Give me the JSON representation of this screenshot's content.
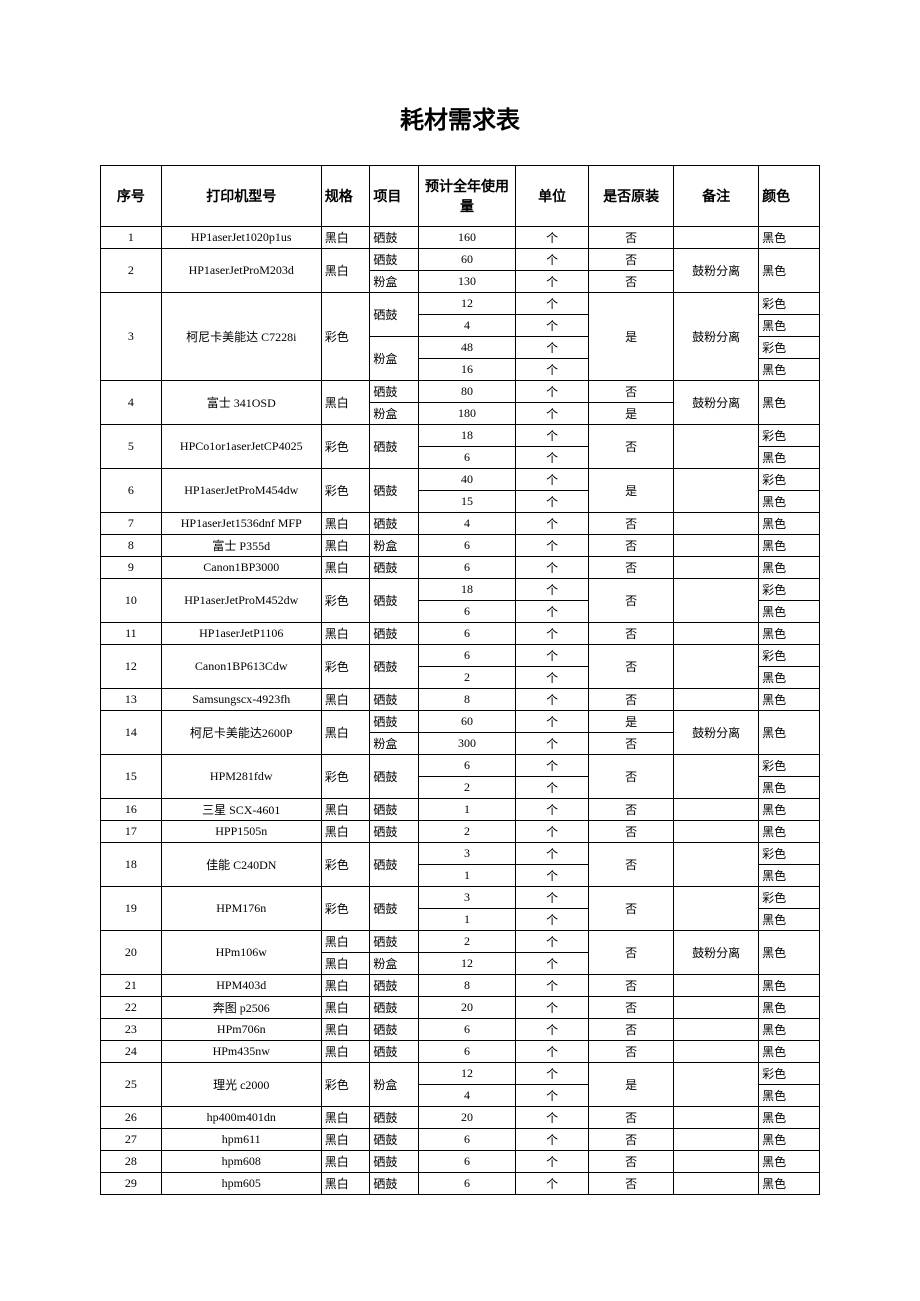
{
  "title": "耗材需求表",
  "headers": {
    "idx": "序号",
    "model": "打印机型号",
    "spec": "规格",
    "item": "项目",
    "qty": "预计全年使用量",
    "unit": "单位",
    "orig": "是否原装",
    "remark": "备注",
    "color": "颜色"
  },
  "rows": [
    {
      "idx": "1",
      "model": "HP1aserJet1020p1us",
      "spec": "黑白",
      "item": "硒鼓",
      "qty": "160",
      "unit": "个",
      "orig": "否",
      "remark": "",
      "color": "黑色",
      "idx_rs": 1,
      "model_rs": 1,
      "spec_rs": 1,
      "item_rs": 1,
      "orig_rs": 1,
      "remark_rs": 1,
      "color_rs": 1
    },
    {
      "idx": "2",
      "model": "HP1aserJetProM203d",
      "spec": "黑白",
      "item": "硒鼓",
      "qty": "60",
      "unit": "个",
      "orig": "否",
      "remark": "鼓粉分离",
      "color": "黑色",
      "idx_rs": 2,
      "model_rs": 2,
      "spec_rs": 2,
      "item_rs": 1,
      "orig_rs": 1,
      "remark_rs": 2,
      "color_rs": 2
    },
    {
      "item": "粉盒",
      "qty": "130",
      "unit": "个",
      "orig": "否",
      "item_rs": 1,
      "orig_rs": 1
    },
    {
      "idx": "3",
      "model": "柯尼卡美能达 C7228i",
      "spec": "彩色",
      "item": "硒鼓",
      "qty": "12",
      "unit": "个",
      "orig": "是",
      "remark": "鼓粉分离",
      "color": "彩色",
      "idx_rs": 4,
      "model_rs": 4,
      "spec_rs": 4,
      "item_rs": 2,
      "orig_rs": 4,
      "remark_rs": 4,
      "color_rs": 1
    },
    {
      "qty": "4",
      "unit": "个",
      "color": "黑色",
      "color_rs": 1
    },
    {
      "item": "粉盒",
      "qty": "48",
      "unit": "个",
      "color": "彩色",
      "item_rs": 2,
      "color_rs": 1
    },
    {
      "qty": "16",
      "unit": "个",
      "color": "黑色",
      "color_rs": 1
    },
    {
      "idx": "4",
      "model": "富士 341OSD",
      "spec": "黑白",
      "item": "硒鼓",
      "qty": "80",
      "unit": "个",
      "orig": "否",
      "remark": "鼓粉分离",
      "color": "黑色",
      "idx_rs": 2,
      "model_rs": 2,
      "spec_rs": 2,
      "item_rs": 1,
      "orig_rs": 1,
      "remark_rs": 2,
      "color_rs": 2
    },
    {
      "item": "粉盒",
      "qty": "180",
      "unit": "个",
      "orig": "是",
      "item_rs": 1,
      "orig_rs": 1
    },
    {
      "idx": "5",
      "model": "HPCo1or1aserJetCP4025",
      "spec": "彩色",
      "item": "硒鼓",
      "qty": "18",
      "unit": "个",
      "orig": "否",
      "remark": "",
      "color": "彩色",
      "idx_rs": 2,
      "model_rs": 2,
      "spec_rs": 2,
      "item_rs": 2,
      "orig_rs": 2,
      "remark_rs": 2,
      "color_rs": 1
    },
    {
      "qty": "6",
      "unit": "个",
      "color": "黑色",
      "color_rs": 1
    },
    {
      "idx": "6",
      "model": "HP1aserJetProM454dw",
      "spec": "彩色",
      "item": "硒鼓",
      "qty": "40",
      "unit": "个",
      "orig": "是",
      "remark": "",
      "color": "彩色",
      "idx_rs": 2,
      "model_rs": 2,
      "spec_rs": 2,
      "item_rs": 2,
      "orig_rs": 2,
      "remark_rs": 2,
      "color_rs": 1
    },
    {
      "qty": "15",
      "unit": "个",
      "color": "黑色",
      "color_rs": 1
    },
    {
      "idx": "7",
      "model": "HP1aserJet1536dnf MFP",
      "spec": "黑白",
      "item": "硒鼓",
      "qty": "4",
      "unit": "个",
      "orig": "否",
      "remark": "",
      "color": "黑色",
      "idx_rs": 1,
      "model_rs": 1,
      "spec_rs": 1,
      "item_rs": 1,
      "orig_rs": 1,
      "remark_rs": 1,
      "color_rs": 1
    },
    {
      "idx": "8",
      "model": "富士 P355d",
      "spec": "黑白",
      "item": "粉盒",
      "qty": "6",
      "unit": "个",
      "orig": "否",
      "remark": "",
      "color": "黑色",
      "idx_rs": 1,
      "model_rs": 1,
      "spec_rs": 1,
      "item_rs": 1,
      "orig_rs": 1,
      "remark_rs": 1,
      "color_rs": 1
    },
    {
      "idx": "9",
      "model": "Canon1BP3000",
      "spec": "黑白",
      "item": "硒鼓",
      "qty": "6",
      "unit": "个",
      "orig": "否",
      "remark": "",
      "color": "黑色",
      "idx_rs": 1,
      "model_rs": 1,
      "spec_rs": 1,
      "item_rs": 1,
      "orig_rs": 1,
      "remark_rs": 1,
      "color_rs": 1
    },
    {
      "idx": "10",
      "model": "HP1aserJetProM452dw",
      "spec": "彩色",
      "item": "硒鼓",
      "qty": "18",
      "unit": "个",
      "orig": "否",
      "remark": "",
      "color": "彩色",
      "idx_rs": 2,
      "model_rs": 2,
      "spec_rs": 2,
      "item_rs": 2,
      "orig_rs": 2,
      "remark_rs": 2,
      "color_rs": 1
    },
    {
      "qty": "6",
      "unit": "个",
      "color": "黑色",
      "color_rs": 1
    },
    {
      "idx": "11",
      "model": "HP1aserJetP1106",
      "spec": "黑白",
      "item": "硒鼓",
      "qty": "6",
      "unit": "个",
      "orig": "否",
      "remark": "",
      "color": "黑色",
      "idx_rs": 1,
      "model_rs": 1,
      "spec_rs": 1,
      "item_rs": 1,
      "orig_rs": 1,
      "remark_rs": 1,
      "color_rs": 1
    },
    {
      "idx": "12",
      "model": "Canon1BP613Cdw",
      "spec": "彩色",
      "item": "硒鼓",
      "qty": "6",
      "unit": "个",
      "orig": "否",
      "remark": "",
      "color": "彩色",
      "idx_rs": 2,
      "model_rs": 2,
      "spec_rs": 2,
      "item_rs": 2,
      "orig_rs": 2,
      "remark_rs": 2,
      "color_rs": 1
    },
    {
      "qty": "2",
      "unit": "个",
      "color": "黑色",
      "color_rs": 1
    },
    {
      "idx": "13",
      "model": "Samsungscx-4923fh",
      "spec": "黑白",
      "item": "硒鼓",
      "qty": "8",
      "unit": "个",
      "orig": "否",
      "remark": "",
      "color": "黑色",
      "idx_rs": 1,
      "model_rs": 1,
      "spec_rs": 1,
      "item_rs": 1,
      "orig_rs": 1,
      "remark_rs": 1,
      "color_rs": 1
    },
    {
      "idx": "14",
      "model": "柯尼卡美能达2600P",
      "spec": "黑白",
      "item": "硒鼓",
      "qty": "60",
      "unit": "个",
      "orig": "是",
      "remark": "鼓粉分离",
      "color": "黑色",
      "idx_rs": 2,
      "model_rs": 2,
      "spec_rs": 2,
      "item_rs": 1,
      "orig_rs": 1,
      "remark_rs": 2,
      "color_rs": 2
    },
    {
      "item": "粉盒",
      "qty": "300",
      "unit": "个",
      "orig": "否",
      "item_rs": 1,
      "orig_rs": 1
    },
    {
      "idx": "15",
      "model": "HPM281fdw",
      "spec": "彩色",
      "item": "硒鼓",
      "qty": "6",
      "unit": "个",
      "orig": "否",
      "remark": "",
      "color": "彩色",
      "idx_rs": 2,
      "model_rs": 2,
      "spec_rs": 2,
      "item_rs": 2,
      "orig_rs": 2,
      "remark_rs": 2,
      "color_rs": 1
    },
    {
      "qty": "2",
      "unit": "个",
      "color": "黑色",
      "color_rs": 1
    },
    {
      "idx": "16",
      "model": "三星 SCX-4601",
      "spec": "黑白",
      "item": "硒鼓",
      "qty": "1",
      "unit": "个",
      "orig": "否",
      "remark": "",
      "color": "黑色",
      "idx_rs": 1,
      "model_rs": 1,
      "spec_rs": 1,
      "item_rs": 1,
      "orig_rs": 1,
      "remark_rs": 1,
      "color_rs": 1
    },
    {
      "idx": "17",
      "model": "HPP1505n",
      "spec": "黑白",
      "item": "硒鼓",
      "qty": "2",
      "unit": "个",
      "orig": "否",
      "remark": "",
      "color": "黑色",
      "idx_rs": 1,
      "model_rs": 1,
      "spec_rs": 1,
      "item_rs": 1,
      "orig_rs": 1,
      "remark_rs": 1,
      "color_rs": 1
    },
    {
      "idx": "18",
      "model": "佳能 C240DN",
      "spec": "彩色",
      "item": "硒鼓",
      "qty": "3",
      "unit": "个",
      "orig": "否",
      "remark": "",
      "color": "彩色",
      "idx_rs": 2,
      "model_rs": 2,
      "spec_rs": 2,
      "item_rs": 2,
      "orig_rs": 2,
      "remark_rs": 2,
      "color_rs": 1
    },
    {
      "qty": "1",
      "unit": "个",
      "color": "黑色",
      "color_rs": 1
    },
    {
      "idx": "19",
      "model": "HPM176n",
      "spec": "彩色",
      "item": "硒鼓",
      "qty": "3",
      "unit": "个",
      "orig": "否",
      "remark": "",
      "color": "彩色",
      "idx_rs": 2,
      "model_rs": 2,
      "spec_rs": 2,
      "item_rs": 2,
      "orig_rs": 2,
      "remark_rs": 2,
      "color_rs": 1
    },
    {
      "qty": "1",
      "unit": "个",
      "color": "黑色",
      "color_rs": 1
    },
    {
      "idx": "20",
      "model": "HPm106w",
      "spec": "黑白",
      "item": "硒鼓",
      "qty": "2",
      "unit": "个",
      "orig": "否",
      "remark": "鼓粉分离",
      "color": "黑色",
      "idx_rs": 2,
      "model_rs": 2,
      "spec_rs": 1,
      "item_rs": 1,
      "orig_rs": 2,
      "remark_rs": 2,
      "color_rs": 2
    },
    {
      "spec": "黑白",
      "item": "粉盒",
      "qty": "12",
      "unit": "个",
      "spec_rs": 1,
      "item_rs": 1
    },
    {
      "idx": "21",
      "model": "HPM403d",
      "spec": "黑白",
      "item": "硒鼓",
      "qty": "8",
      "unit": "个",
      "orig": "否",
      "remark": "",
      "color": "黑色",
      "idx_rs": 1,
      "model_rs": 1,
      "spec_rs": 1,
      "item_rs": 1,
      "orig_rs": 1,
      "remark_rs": 1,
      "color_rs": 1
    },
    {
      "idx": "22",
      "model": "奔图 p2506",
      "spec": "黑白",
      "item": "硒鼓",
      "qty": "20",
      "unit": "个",
      "orig": "否",
      "remark": "",
      "color": "黑色",
      "idx_rs": 1,
      "model_rs": 1,
      "spec_rs": 1,
      "item_rs": 1,
      "orig_rs": 1,
      "remark_rs": 1,
      "color_rs": 1
    },
    {
      "idx": "23",
      "model": "HPm706n",
      "spec": "黑白",
      "item": "硒鼓",
      "qty": "6",
      "unit": "个",
      "orig": "否",
      "remark": "",
      "color": "黑色",
      "idx_rs": 1,
      "model_rs": 1,
      "spec_rs": 1,
      "item_rs": 1,
      "orig_rs": 1,
      "remark_rs": 1,
      "color_rs": 1
    },
    {
      "idx": "24",
      "model": "HPm435nw",
      "spec": "黑白",
      "item": "硒鼓",
      "qty": "6",
      "unit": "个",
      "orig": "否",
      "remark": "",
      "color": "黑色",
      "idx_rs": 1,
      "model_rs": 1,
      "spec_rs": 1,
      "item_rs": 1,
      "orig_rs": 1,
      "remark_rs": 1,
      "color_rs": 1
    },
    {
      "idx": "25",
      "model": "理光 c2000",
      "spec": "彩色",
      "item": "粉盒",
      "qty": "12",
      "unit": "个",
      "orig": "是",
      "remark": "",
      "color": "彩色",
      "idx_rs": 2,
      "model_rs": 2,
      "spec_rs": 2,
      "item_rs": 2,
      "orig_rs": 2,
      "remark_rs": 2,
      "color_rs": 1
    },
    {
      "qty": "4",
      "unit": "个",
      "color": "黑色",
      "color_rs": 1
    },
    {
      "idx": "26",
      "model": "hp400m401dn",
      "spec": "黑白",
      "item": "硒鼓",
      "qty": "20",
      "unit": "个",
      "orig": "否",
      "remark": "",
      "color": "黑色",
      "idx_rs": 1,
      "model_rs": 1,
      "spec_rs": 1,
      "item_rs": 1,
      "orig_rs": 1,
      "remark_rs": 1,
      "color_rs": 1
    },
    {
      "idx": "27",
      "model": "hpm611",
      "spec": "黑白",
      "item": "硒鼓",
      "qty": "6",
      "unit": "个",
      "orig": "否",
      "remark": "",
      "color": "黑色",
      "idx_rs": 1,
      "model_rs": 1,
      "spec_rs": 1,
      "item_rs": 1,
      "orig_rs": 1,
      "remark_rs": 1,
      "color_rs": 1
    },
    {
      "idx": "28",
      "model": "hpm608",
      "spec": "黑白",
      "item": "硒鼓",
      "qty": "6",
      "unit": "个",
      "orig": "否",
      "remark": "",
      "color": "黑色",
      "idx_rs": 1,
      "model_rs": 1,
      "spec_rs": 1,
      "item_rs": 1,
      "orig_rs": 1,
      "remark_rs": 1,
      "color_rs": 1
    },
    {
      "idx": "29",
      "model": "hpm605",
      "spec": "黑白",
      "item": "硒鼓",
      "qty": "6",
      "unit": "个",
      "orig": "否",
      "remark": "",
      "color": "黑色",
      "idx_rs": 1,
      "model_rs": 1,
      "spec_rs": 1,
      "item_rs": 1,
      "orig_rs": 1,
      "remark_rs": 1,
      "color_rs": 1
    }
  ]
}
